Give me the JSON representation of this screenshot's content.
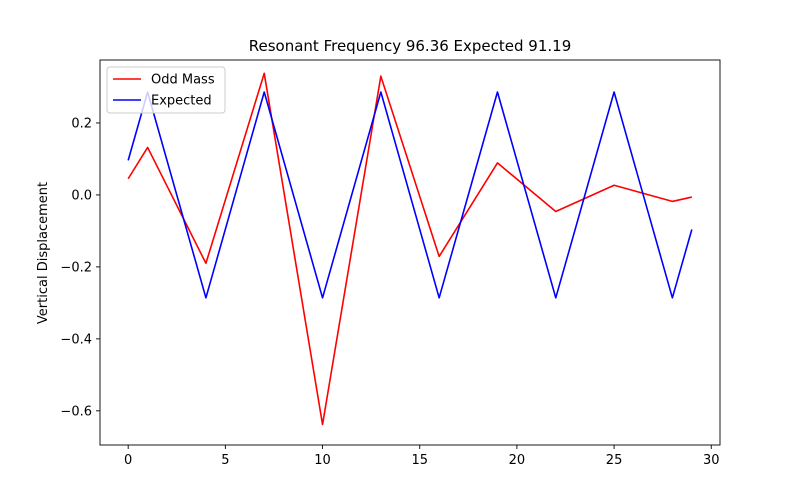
{
  "chart_data": {
    "type": "line",
    "title": "Resonant Frequency 96.36 Expected 91.19",
    "xlabel": "",
    "ylabel": "Vertical Displacement",
    "xlim": [
      -1.45,
      30.45
    ],
    "ylim": [
      -0.695,
      0.375
    ],
    "xticks": [
      0,
      5,
      10,
      15,
      20,
      25,
      30
    ],
    "xtick_labels": [
      "0",
      "5",
      "10",
      "15",
      "20",
      "25",
      "30"
    ],
    "yticks": [
      -0.6,
      -0.4,
      -0.2,
      0.0,
      0.2
    ],
    "ytick_labels": [
      "−0.6",
      "−0.4",
      "−0.2",
      "0.0",
      "0.2"
    ],
    "grid": false,
    "legend_position": "top-left",
    "series": [
      {
        "name": "Odd Mass",
        "color": "#ff0000",
        "x": [
          0,
          1,
          4,
          7,
          10,
          13,
          16,
          19,
          22,
          25,
          28,
          29
        ],
        "y": [
          0.045,
          0.132,
          -0.19,
          0.338,
          -0.638,
          0.33,
          -0.171,
          0.089,
          -0.046,
          0.027,
          -0.018,
          -0.006
        ]
      },
      {
        "name": "Expected",
        "color": "#0000ff",
        "x": [
          0,
          1,
          4,
          7,
          10,
          13,
          16,
          19,
          22,
          25,
          28,
          29
        ],
        "y": [
          0.096,
          0.286,
          -0.286,
          0.286,
          -0.286,
          0.286,
          -0.286,
          0.286,
          -0.286,
          0.286,
          -0.286,
          -0.096
        ]
      }
    ]
  }
}
